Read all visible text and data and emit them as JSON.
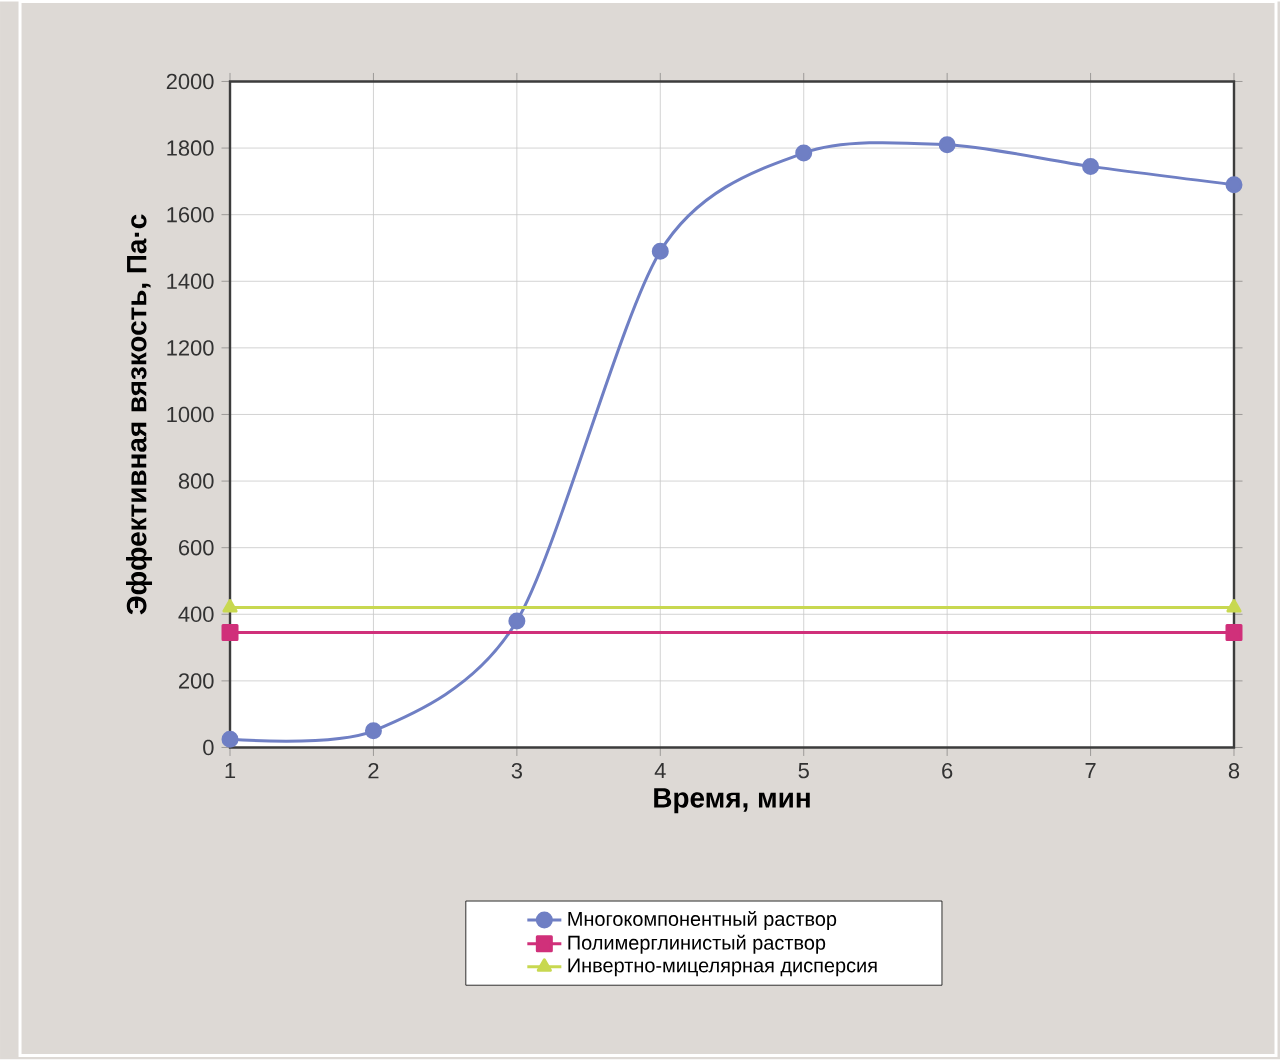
{
  "chart_data": {
    "type": "line",
    "xlabel": "Время, мин",
    "ylabel": "Эффективная вязкость, Па·с",
    "xlim": [
      1,
      8
    ],
    "xticks": [
      1,
      2,
      3,
      4,
      5,
      6,
      7,
      8
    ],
    "ylim": [
      0,
      2000
    ],
    "yticks": [
      0,
      200,
      400,
      600,
      800,
      1000,
      1200,
      1400,
      1600,
      1800,
      2000
    ],
    "grid": true,
    "legend": "bottom",
    "series": [
      {
        "name": "Многокомпонентный раствор",
        "color": "#6f7fc4",
        "marker": "circle",
        "x": [
          1,
          2,
          3,
          4,
          5,
          6,
          7,
          8
        ],
        "values": [
          25,
          50,
          380,
          1490,
          1785,
          1810,
          1745,
          1690
        ]
      },
      {
        "name": "Полимерглинистый раствор",
        "color": "#d0307a",
        "marker": "square",
        "x": [
          1,
          8
        ],
        "values": [
          345,
          345
        ]
      },
      {
        "name": "Инвертно-мицелярная дисперсия",
        "color": "#c8d850",
        "marker": "triangle",
        "x": [
          1,
          8
        ],
        "values": [
          420,
          420
        ]
      }
    ]
  }
}
